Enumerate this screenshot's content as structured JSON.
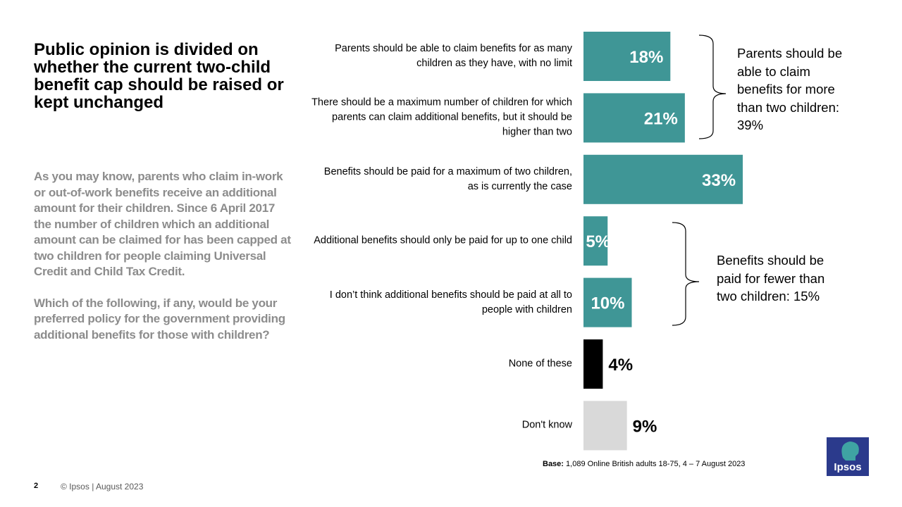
{
  "chart_data": {
    "type": "bar",
    "orientation": "horizontal",
    "title": "Public opinion is divided on whether the current two-child benefit cap should be raised or kept unchanged",
    "subtitle": [
      "As you may know, parents who claim in-work or out-of-work benefits receive an additional amount for their children. Since 6 April 2017 the number of children which an additional amount can be claimed for has been capped at two children for people claiming Universal Credit and Child Tax Credit.",
      "Which of the following, if any, would be your preferred policy for the government providing additional benefits for those with children?"
    ],
    "categories": [
      "Parents should be able to claim benefits for as many children as they have, with no limit",
      "There should be a maximum number of children for which parents can claim additional benefits, but it should be higher than two",
      "Benefits should be paid for a maximum of two children, as is currently the case",
      "Additional benefits should only be paid for up to one child",
      "I don’t think additional benefits should be paid at all to people with children",
      "None of these",
      "Don't know"
    ],
    "values": [
      18,
      21,
      33,
      5,
      10,
      4,
      9
    ],
    "value_labels": [
      "18%",
      "21%",
      "33%",
      "5%",
      "10%",
      "4%",
      "9%"
    ],
    "color": "#3f9696",
    "colors": [
      "#3f9696",
      "#3f9696",
      "#3f9696",
      "#3f9696",
      "#3f9696",
      "#000000",
      "#d9d9d9"
    ],
    "annotations": [
      "Parents should be able to claim benefits for more than two children: 39%",
      "Benefits should be paid for fewer than two children: 15%"
    ],
    "base_label": "Base:",
    "base": "1,089 Online British adults 18-75, 4 – 7 August 2023"
  },
  "footer": {
    "page": "2",
    "copyright": "© Ipsos | August 2023",
    "logo": "Ipsos"
  }
}
